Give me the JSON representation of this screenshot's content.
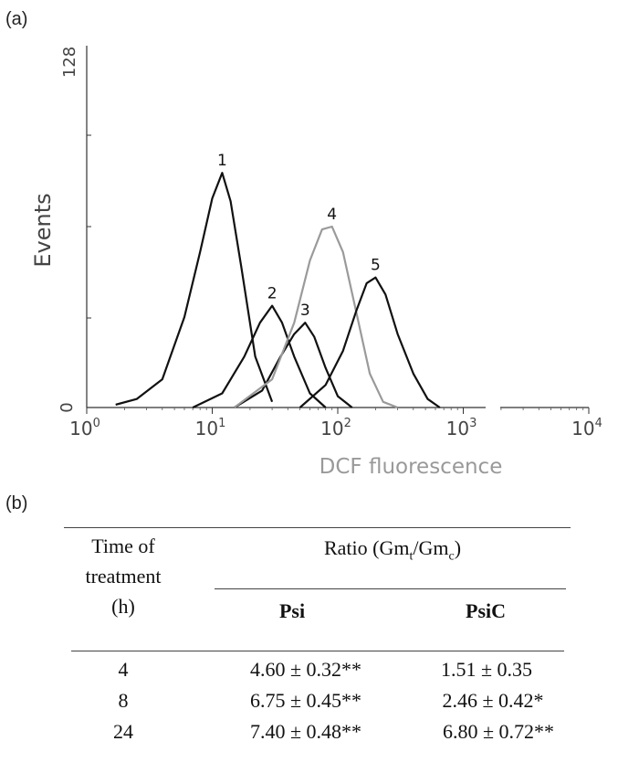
{
  "panel_a_label": "(a)",
  "panel_b_label": "(b)",
  "chart_data": {
    "type": "line",
    "xlabel": "DCF fluorescence",
    "ylabel": "Events",
    "x_scale": "log",
    "xlim": [
      1,
      10000
    ],
    "ylim": [
      0,
      128
    ],
    "x_ticks": [
      {
        "base": "10",
        "exp": "0"
      },
      {
        "base": "10",
        "exp": "1"
      },
      {
        "base": "10",
        "exp": "2"
      },
      {
        "base": "10",
        "exp": "3"
      },
      {
        "base": "10",
        "exp": "4"
      }
    ],
    "y_ticks": [
      "0",
      "128"
    ],
    "series": [
      {
        "name": "1",
        "color": "#111111",
        "x": [
          1.7,
          2.5,
          4.0,
          6.0,
          8.0,
          10.0,
          12.0,
          14.0,
          17.0,
          22.0,
          30.0
        ],
        "y": [
          1,
          3,
          10,
          32,
          55,
          74,
          83,
          73,
          50,
          18,
          2
        ]
      },
      {
        "name": "2",
        "color": "#111111",
        "x": [
          7.0,
          12.0,
          18.0,
          24.0,
          30.0,
          36.0,
          45.0,
          60.0,
          80.0
        ],
        "y": [
          0,
          5,
          18,
          30,
          36,
          30,
          18,
          5,
          0
        ]
      },
      {
        "name": "3",
        "color": "#111111",
        "x": [
          15.0,
          25.0,
          35.0,
          45.0,
          55.0,
          65.0,
          80.0,
          100.0,
          130.0
        ],
        "y": [
          0,
          6,
          18,
          26,
          30,
          25,
          14,
          4,
          0
        ]
      },
      {
        "name": "4",
        "color": "#9a9a9a",
        "x": [
          15.0,
          30.0,
          45.0,
          60.0,
          75.0,
          90.0,
          110.0,
          140.0,
          180.0,
          230.0,
          300.0
        ],
        "y": [
          0,
          10,
          30,
          52,
          63,
          64,
          55,
          34,
          12,
          2,
          0
        ]
      },
      {
        "name": "5",
        "color": "#111111",
        "x": [
          50.0,
          80.0,
          110.0,
          140.0,
          170.0,
          200.0,
          240.0,
          300.0,
          400.0,
          520.0,
          650.0
        ],
        "y": [
          0,
          8,
          20,
          34,
          44,
          46,
          40,
          26,
          12,
          3,
          0
        ]
      }
    ]
  },
  "table": {
    "col_time_header": [
      "Time of",
      "treatment",
      "(h)"
    ],
    "ratio_header_prefix": "Ratio (Gm",
    "ratio_sub_t": "t",
    "ratio_mid": "/Gm",
    "ratio_sub_c": "c",
    "ratio_suffix": ")",
    "col_psi": "Psi",
    "col_psic": "PsiC",
    "rows": [
      {
        "time": "4",
        "psi": "4.60 ± 0.32**",
        "psic": "1.51 ± 0.35"
      },
      {
        "time": "8",
        "psi": "6.75 ± 0.45**",
        "psic": "2.46 ± 0.42*"
      },
      {
        "time": "24",
        "psi": "7.40 ± 0.48**",
        "psic": "6.80 ± 0.72**"
      }
    ]
  }
}
